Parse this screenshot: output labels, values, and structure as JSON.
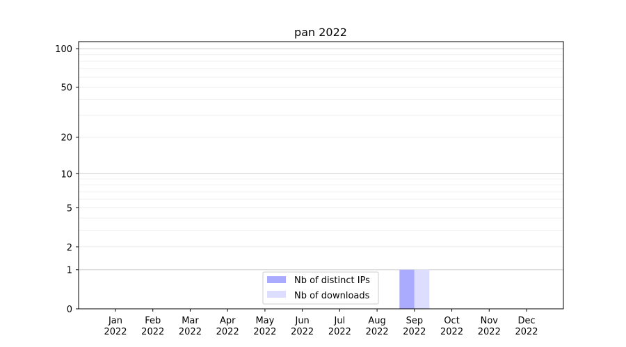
{
  "chart_data": {
    "type": "bar",
    "title": "pan 2022",
    "xlabel": "",
    "ylabel": "",
    "yscale": "log(1+y)",
    "ylim": [
      0,
      113
    ],
    "y_ticks": [
      0,
      1,
      2,
      5,
      10,
      20,
      50,
      100
    ],
    "y_minor_grid": [
      3,
      4,
      6,
      7,
      8,
      9,
      30,
      40,
      60,
      70,
      80,
      90
    ],
    "y_major_grid": [
      1,
      10,
      100
    ],
    "grid": true,
    "categories": [
      "Jan\n2022",
      "Feb\n2022",
      "Mar\n2022",
      "Apr\n2022",
      "May\n2022",
      "Jun\n2022",
      "Jul\n2022",
      "Aug\n2022",
      "Sep\n2022",
      "Oct\n2022",
      "Nov\n2022",
      "Dec\n2022"
    ],
    "series": [
      {
        "name": "Nb of distinct IPs",
        "color": "#aaaaff",
        "values": [
          0,
          0,
          0,
          0,
          0,
          0,
          0,
          0,
          1,
          0,
          0,
          0
        ]
      },
      {
        "name": "Nb of downloads",
        "color": "#ddddff",
        "values": [
          0,
          0,
          0,
          0,
          0,
          0,
          0,
          0,
          1,
          0,
          0,
          0
        ]
      }
    ],
    "legend_position": "lower-center"
  }
}
